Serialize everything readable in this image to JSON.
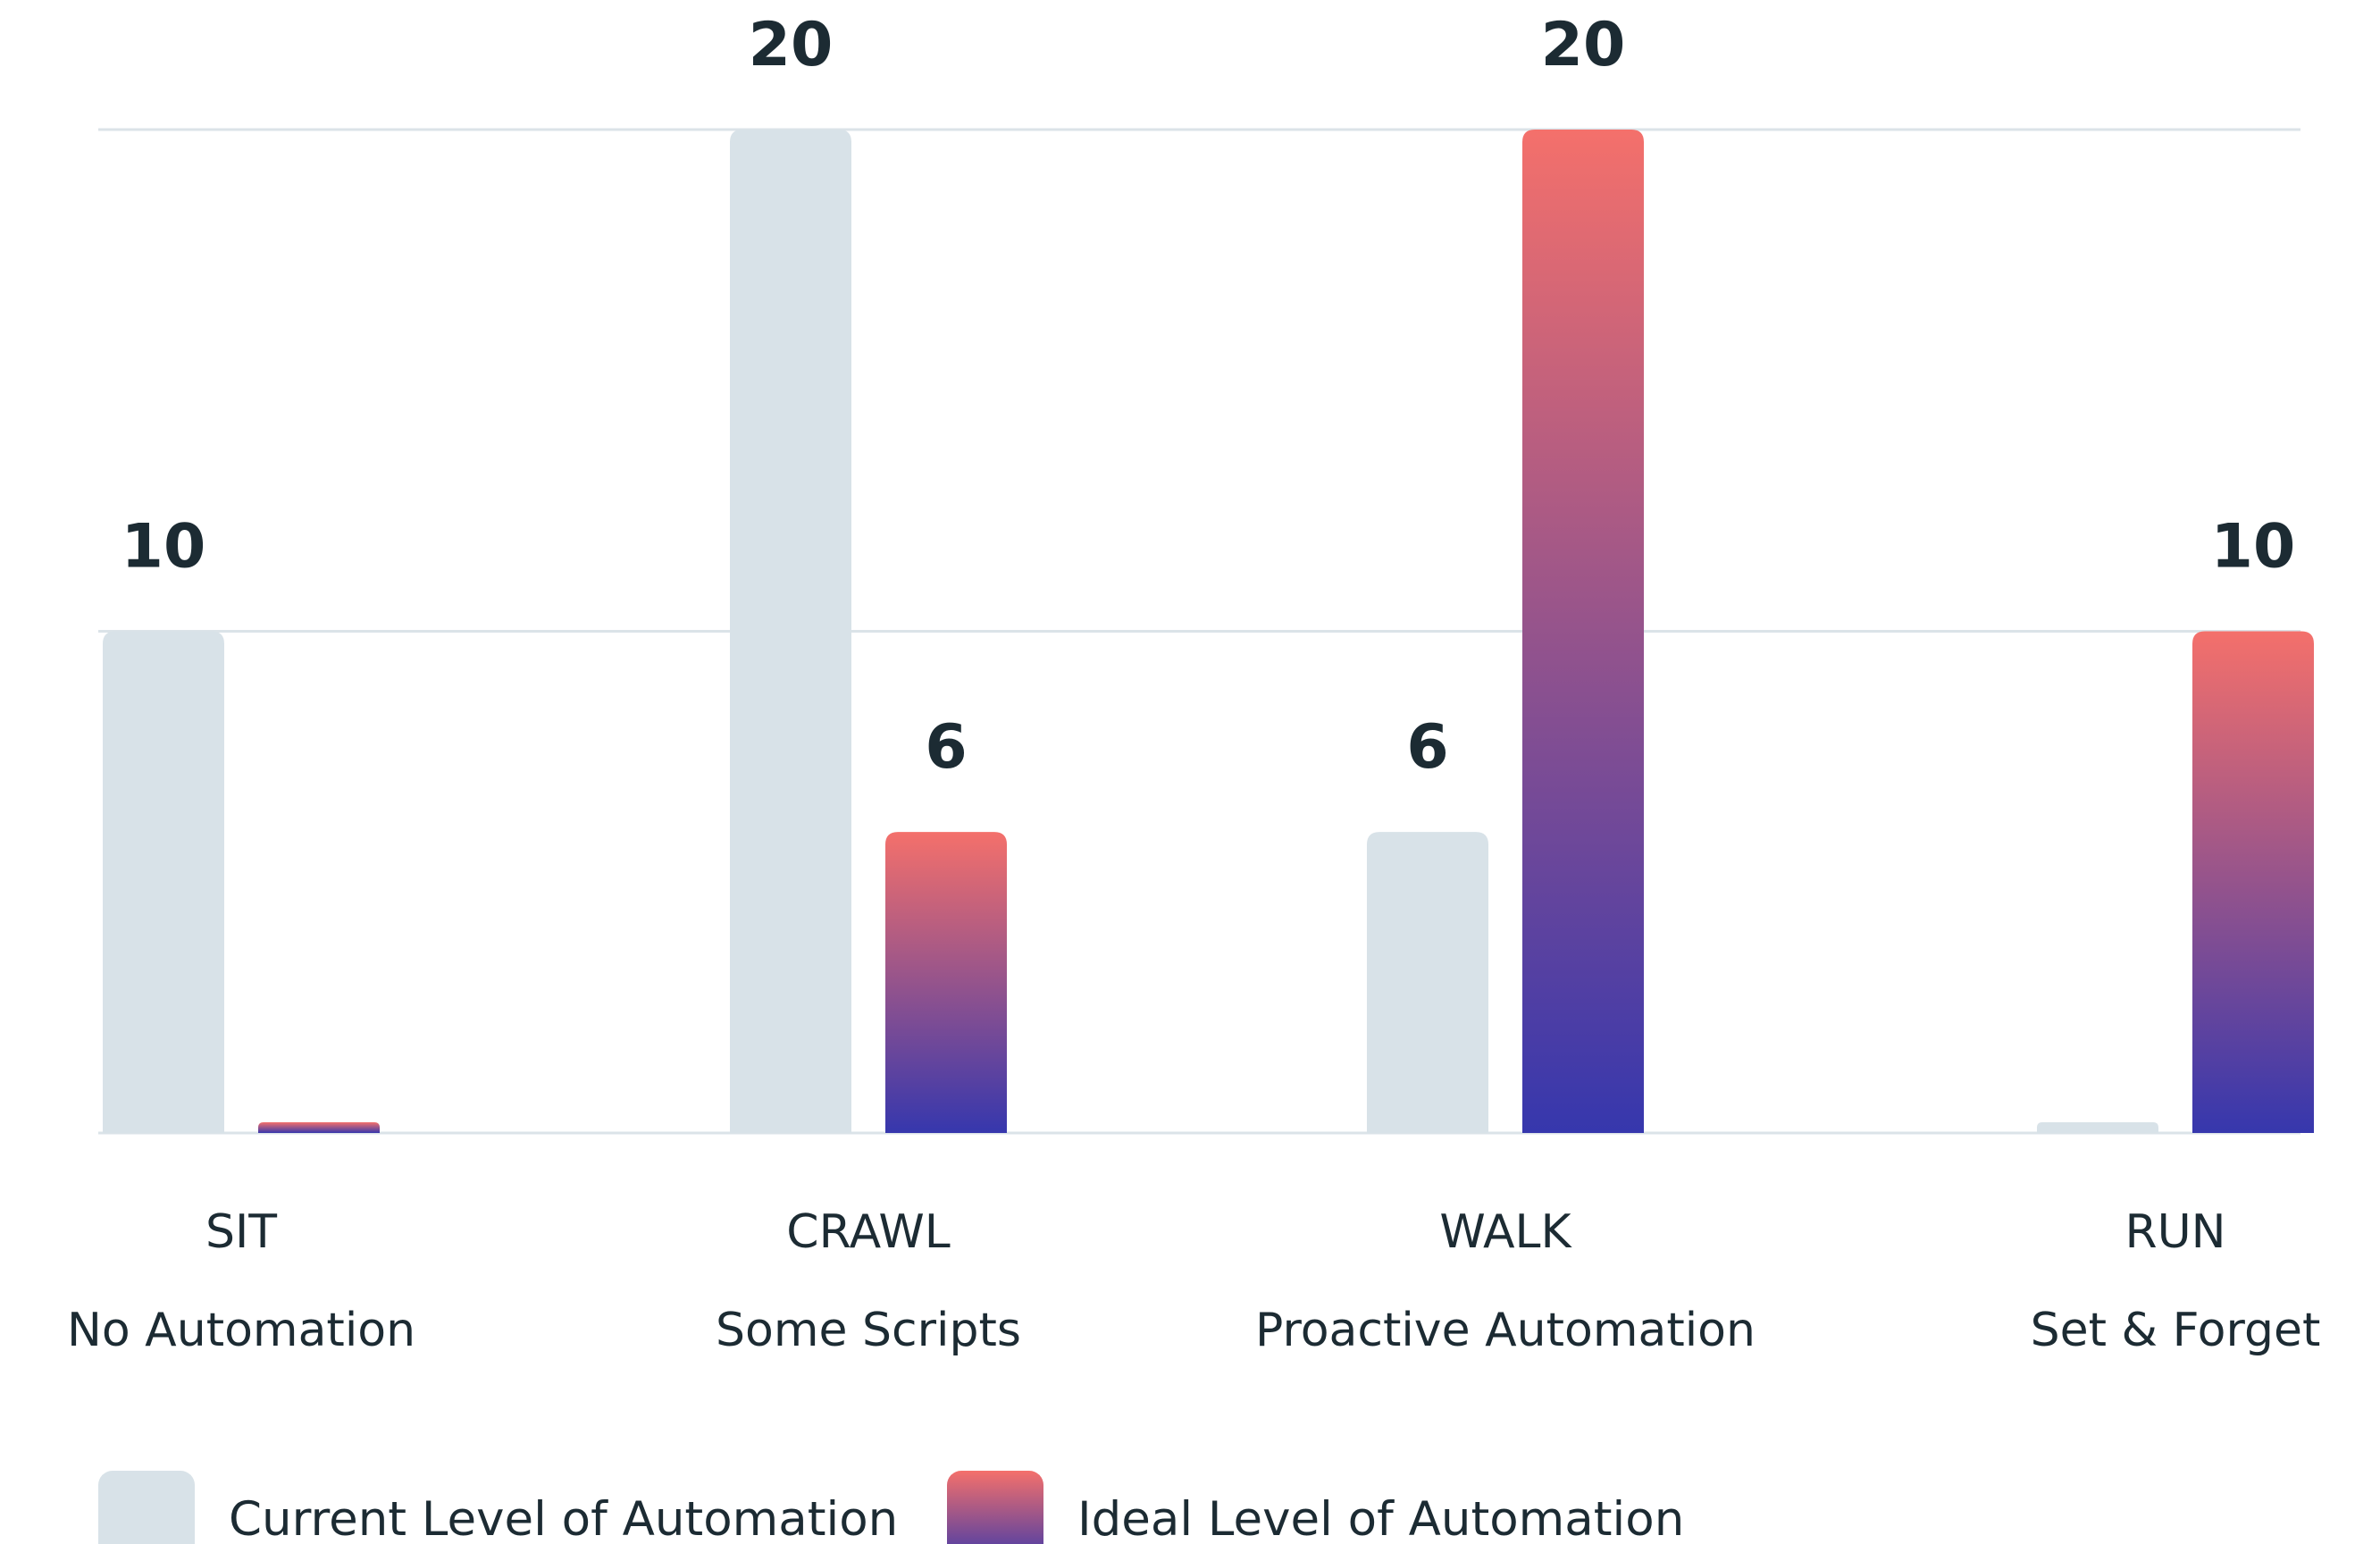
{
  "chart_data": {
    "type": "bar",
    "categories": [
      "SIT",
      "CRAWL",
      "WALK",
      "RUN"
    ],
    "subtitles": [
      "No Automation",
      "Some Scripts",
      "Proactive Automation",
      "Set & Forget"
    ],
    "series": [
      {
        "name": "Current Level of Automation",
        "values": [
          10,
          20,
          6,
          0
        ],
        "color": "#d8e2e8"
      },
      {
        "name": "Ideal Level of Automation",
        "values": [
          0,
          6,
          20,
          10
        ],
        "color_top": "#f4706b",
        "color_bottom": "#3637ad"
      }
    ],
    "ylim": [
      0,
      20
    ],
    "grid": true,
    "legend_position": "bottom-left",
    "title": "",
    "xlabel": "",
    "ylabel": ""
  }
}
